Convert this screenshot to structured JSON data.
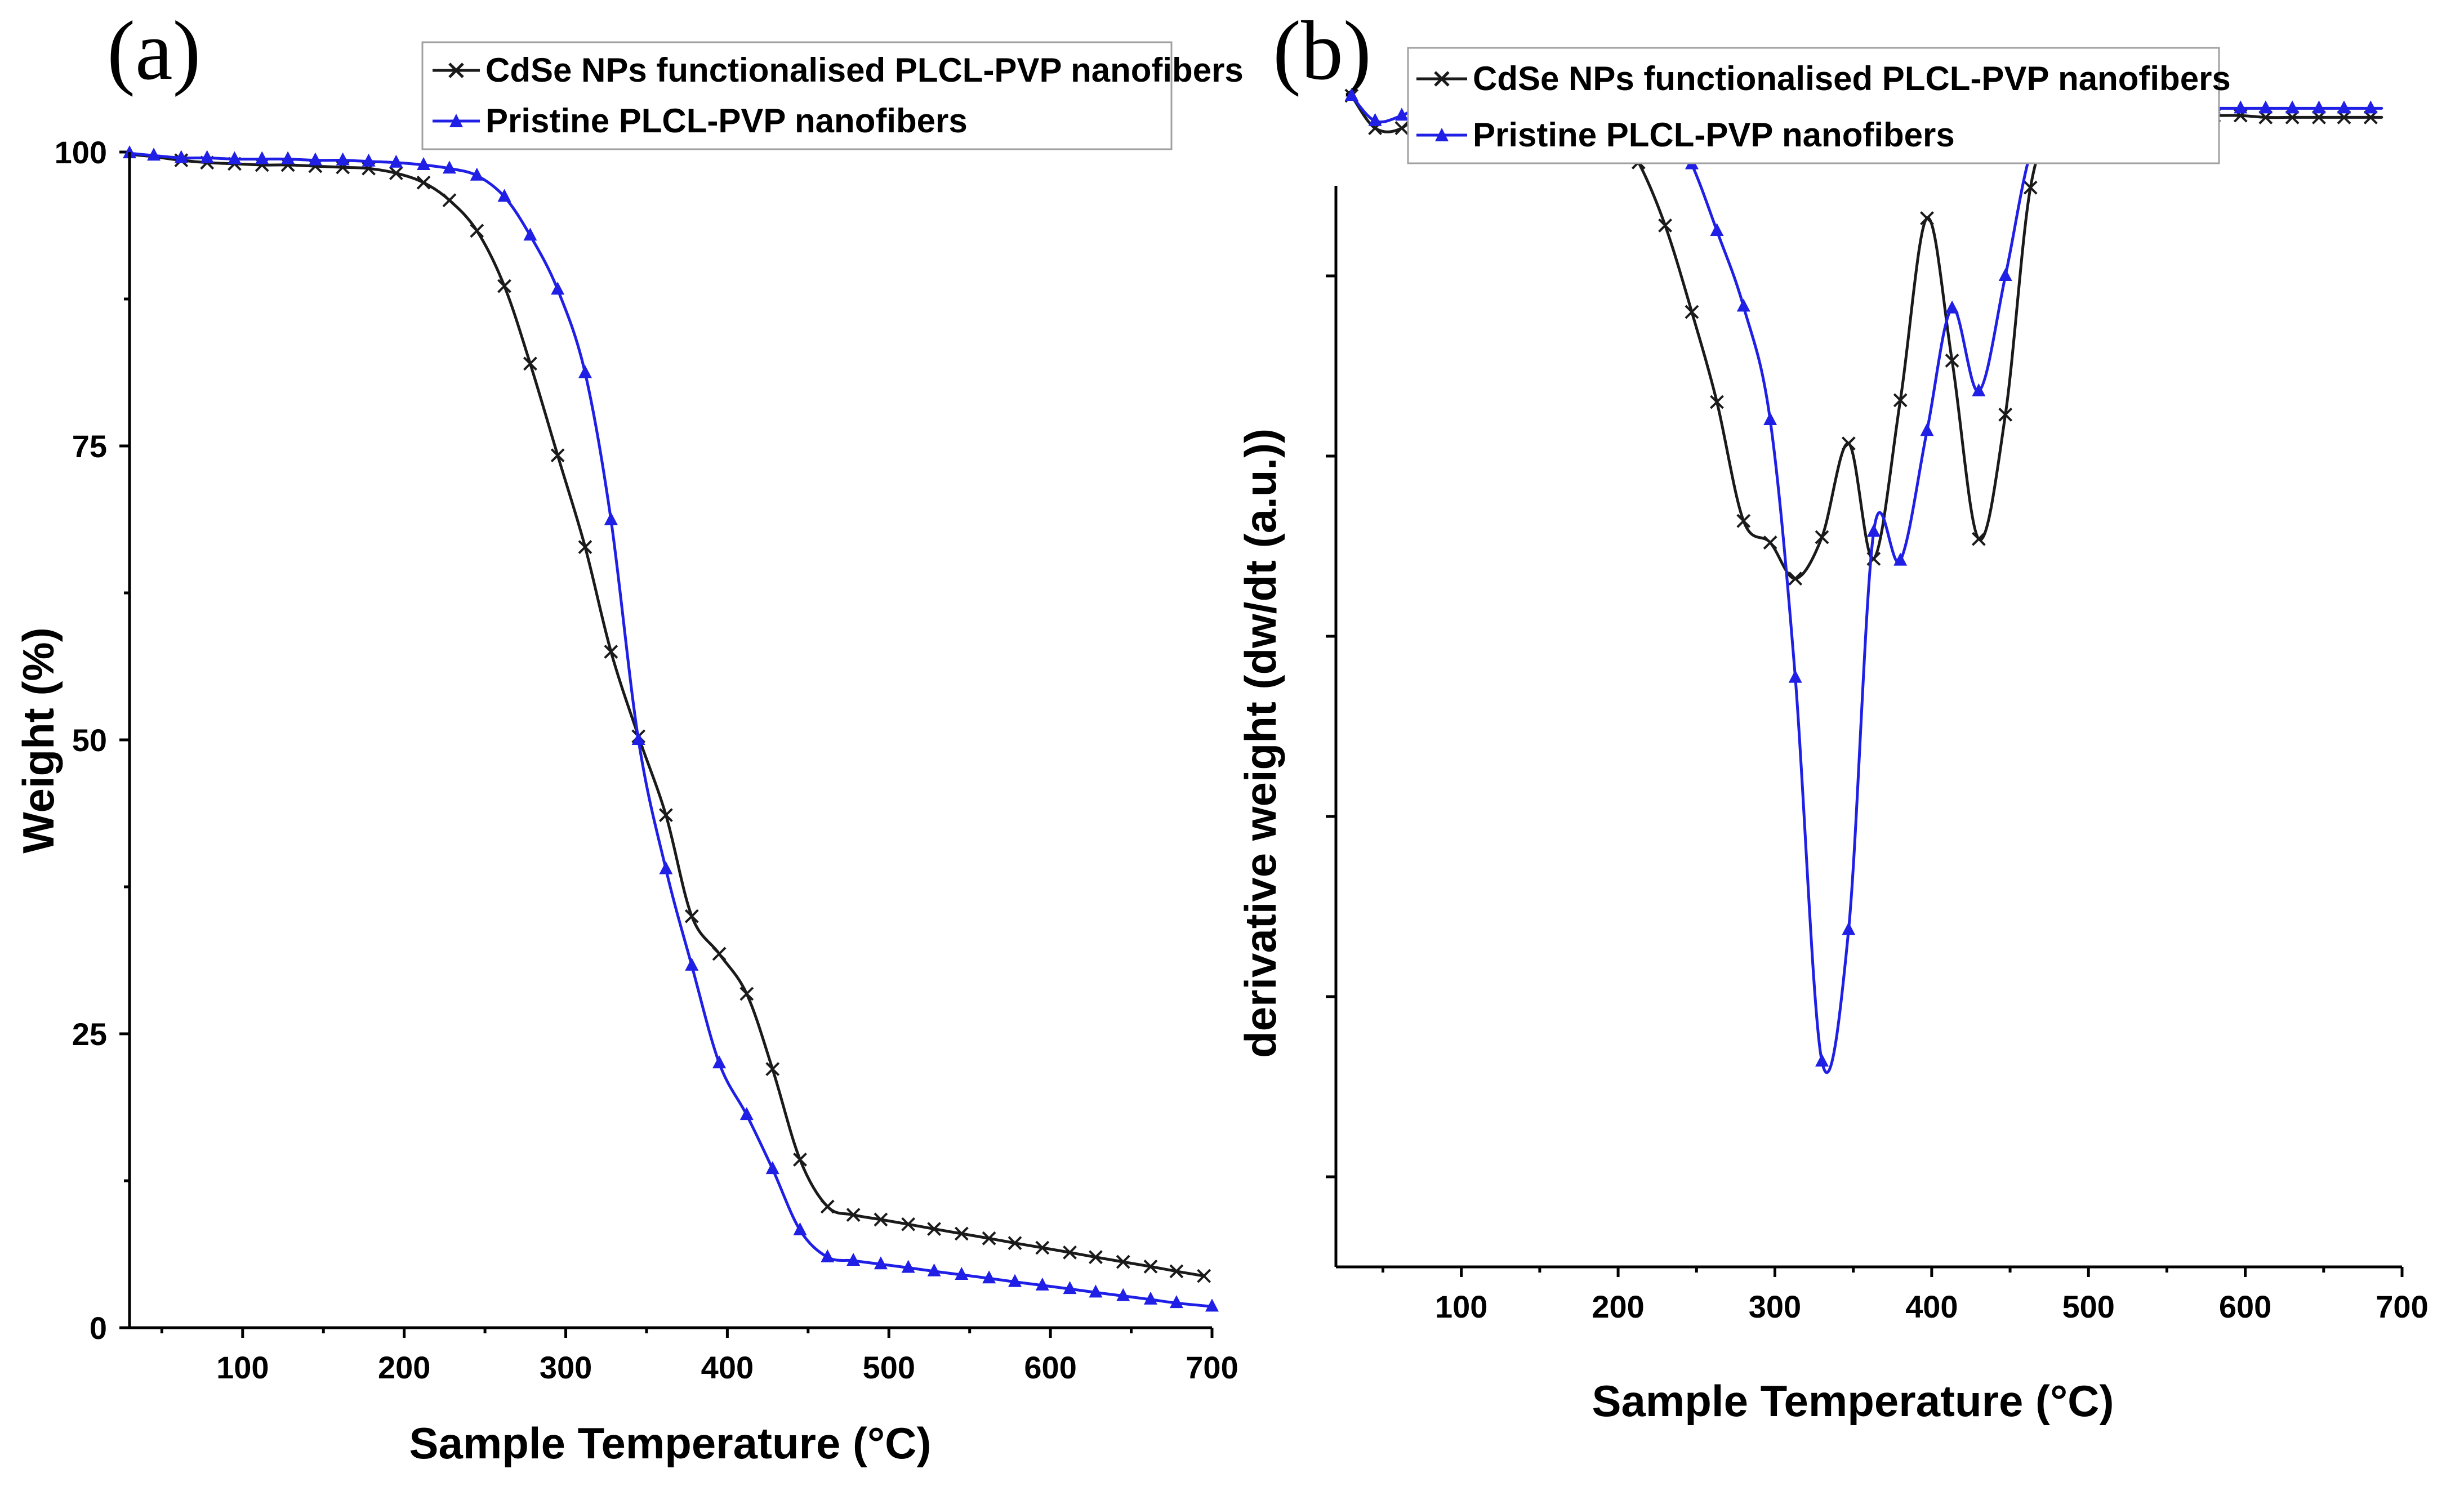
{
  "chart_data": [
    {
      "type": "line",
      "panel_label": "(a)",
      "xlabel": "Sample Temperature (°C)",
      "ylabel": "Weight (%)",
      "xlim": [
        30,
        700
      ],
      "ylim": [
        0,
        100
      ],
      "xticks": [
        100,
        200,
        300,
        400,
        500,
        600,
        700
      ],
      "yticks": [
        0,
        25,
        50,
        75,
        100
      ],
      "legend_position": "top-right",
      "series": [
        {
          "name": "CdSe NPs functionalised PLCL-PVP nanofibers",
          "color": "#1a1a1a",
          "marker": "x",
          "x": [
            30,
            45,
            62,
            78,
            95,
            112,
            128,
            145,
            162,
            178,
            195,
            212,
            228,
            245,
            262,
            278,
            295,
            312,
            328,
            345,
            362,
            378,
            395,
            412,
            428,
            445,
            462,
            478,
            495,
            512,
            528,
            545,
            562,
            578,
            595,
            612,
            628,
            645,
            662,
            678,
            695
          ],
          "y": [
            99.8,
            99.6,
            99.3,
            99.1,
            99.0,
            98.9,
            98.9,
            98.8,
            98.7,
            98.6,
            98.2,
            97.4,
            95.9,
            93.3,
            88.6,
            82.0,
            74.2,
            66.4,
            57.5,
            50.3,
            43.6,
            35.0,
            31.8,
            28.4,
            22.0,
            14.3,
            10.3,
            9.6,
            9.2,
            8.8,
            8.4,
            8.0,
            7.6,
            7.2,
            6.8,
            6.4,
            6.0,
            5.6,
            5.2,
            4.8,
            4.4
          ],
          "marker_x": [
            62,
            78,
            95,
            112,
            128,
            145,
            162,
            178,
            195,
            212,
            228,
            245,
            262,
            278,
            295,
            312,
            328,
            345,
            362,
            378,
            395,
            412,
            428,
            445,
            462,
            478,
            495,
            512,
            528,
            545,
            562,
            578,
            595,
            612,
            628,
            645,
            662,
            678,
            695
          ]
        },
        {
          "name": "Pristine PLCL-PVP nanofibers",
          "color": "#1f1fe6",
          "marker": "triangle",
          "x": [
            30,
            45,
            62,
            78,
            95,
            112,
            128,
            145,
            162,
            178,
            195,
            212,
            228,
            245,
            262,
            278,
            295,
            312,
            328,
            345,
            362,
            378,
            395,
            412,
            428,
            445,
            462,
            478,
            495,
            512,
            528,
            545,
            562,
            578,
            595,
            612,
            628,
            645,
            662,
            678,
            700
          ],
          "y": [
            99.9,
            99.7,
            99.5,
            99.5,
            99.4,
            99.4,
            99.4,
            99.3,
            99.3,
            99.2,
            99.1,
            98.9,
            98.6,
            98.0,
            96.2,
            92.9,
            88.3,
            81.2,
            68.7,
            50.0,
            39.0,
            30.8,
            22.5,
            18.1,
            13.5,
            8.3,
            6.0,
            5.7,
            5.4,
            5.1,
            4.8,
            4.5,
            4.2,
            3.9,
            3.6,
            3.3,
            3.0,
            2.7,
            2.4,
            2.1,
            1.8
          ],
          "marker_x": [
            30,
            45,
            62,
            78,
            95,
            112,
            128,
            145,
            162,
            178,
            195,
            212,
            228,
            245,
            262,
            278,
            295,
            312,
            328,
            345,
            362,
            378,
            395,
            412,
            428,
            445,
            462,
            478,
            495,
            512,
            528,
            545,
            562,
            578,
            595,
            612,
            628,
            645,
            662,
            678,
            700
          ]
        }
      ]
    },
    {
      "type": "line",
      "panel_label": "(b)",
      "xlabel": "Sample Temperature (°C)",
      "ylabel": "derivative weight (dw/dt (a.u.))",
      "xlim": [
        20,
        700
      ],
      "ylim": [
        -5.5,
        0.5
      ],
      "xticks": [
        100,
        200,
        300,
        400,
        500,
        600,
        700
      ],
      "yticks": [
        -5,
        -4,
        -3,
        -2,
        -1,
        0
      ],
      "ytick_labels_visible": false,
      "legend_position": "top-left",
      "series": [
        {
          "name": "CdSe NPs functionalised PLCL-PVP nanofibers",
          "color": "#1a1a1a",
          "marker": "x",
          "x": [
            30,
            45,
            62,
            80,
            97,
            113,
            130,
            147,
            163,
            180,
            197,
            213,
            230,
            247,
            263,
            280,
            297,
            313,
            330,
            347,
            363,
            380,
            397,
            413,
            430,
            447,
            463,
            480,
            497,
            513,
            530,
            547,
            563,
            580,
            597,
            613,
            630,
            647,
            663,
            680,
            687
          ],
          "y": [
            1.0,
            0.82,
            0.82,
            0.97,
            0.99,
            0.99,
            0.99,
            0.99,
            0.97,
            0.93,
            0.83,
            0.63,
            0.28,
            -0.2,
            -0.7,
            -1.36,
            -1.48,
            -1.68,
            -1.45,
            -0.93,
            -1.57,
            -0.69,
            0.32,
            -0.47,
            -1.46,
            -0.77,
            0.49,
            0.86,
            0.88,
            0.89,
            0.9,
            0.89,
            0.89,
            0.89,
            0.89,
            0.88,
            0.88,
            0.88,
            0.88,
            0.88,
            0.88
          ],
          "marker_x": [
            30,
            45,
            62,
            80,
            97,
            113,
            130,
            147,
            163,
            180,
            197,
            213,
            230,
            247,
            263,
            280,
            297,
            313,
            330,
            347,
            363,
            380,
            397,
            413,
            430,
            447,
            463,
            480,
            497,
            513,
            530,
            547,
            563,
            580,
            597,
            613,
            630,
            647,
            663,
            680
          ]
        },
        {
          "name": "Pristine PLCL-PVP nanofibers",
          "color": "#1f1fe6",
          "marker": "triangle",
          "x": [
            30,
            45,
            62,
            80,
            97,
            113,
            130,
            147,
            163,
            180,
            197,
            213,
            230,
            247,
            263,
            280,
            297,
            313,
            330,
            347,
            363,
            380,
            397,
            413,
            430,
            447,
            463,
            480,
            497,
            513,
            530,
            547,
            563,
            580,
            597,
            613,
            630,
            647,
            663,
            680,
            687
          ],
          "y": [
            1.0,
            0.86,
            0.89,
            0.97,
            0.99,
            0.99,
            0.99,
            0.99,
            0.98,
            0.97,
            0.96,
            0.95,
            0.9,
            0.62,
            0.25,
            -0.17,
            -0.8,
            -2.23,
            -4.36,
            -3.63,
            -1.42,
            -1.58,
            -0.86,
            -0.18,
            -0.64,
            0.0,
            0.68,
            0.92,
            0.93,
            0.93,
            0.93,
            0.93,
            0.93,
            0.93,
            0.93,
            0.93,
            0.93,
            0.93,
            0.93,
            0.93,
            0.93
          ],
          "marker_x": [
            30,
            45,
            62,
            80,
            97,
            113,
            130,
            147,
            163,
            180,
            197,
            213,
            230,
            247,
            263,
            280,
            297,
            313,
            330,
            347,
            363,
            380,
            397,
            413,
            430,
            447,
            463,
            480,
            497,
            513,
            530,
            547,
            563,
            580,
            597,
            613,
            630,
            647,
            663,
            680
          ]
        }
      ]
    }
  ]
}
